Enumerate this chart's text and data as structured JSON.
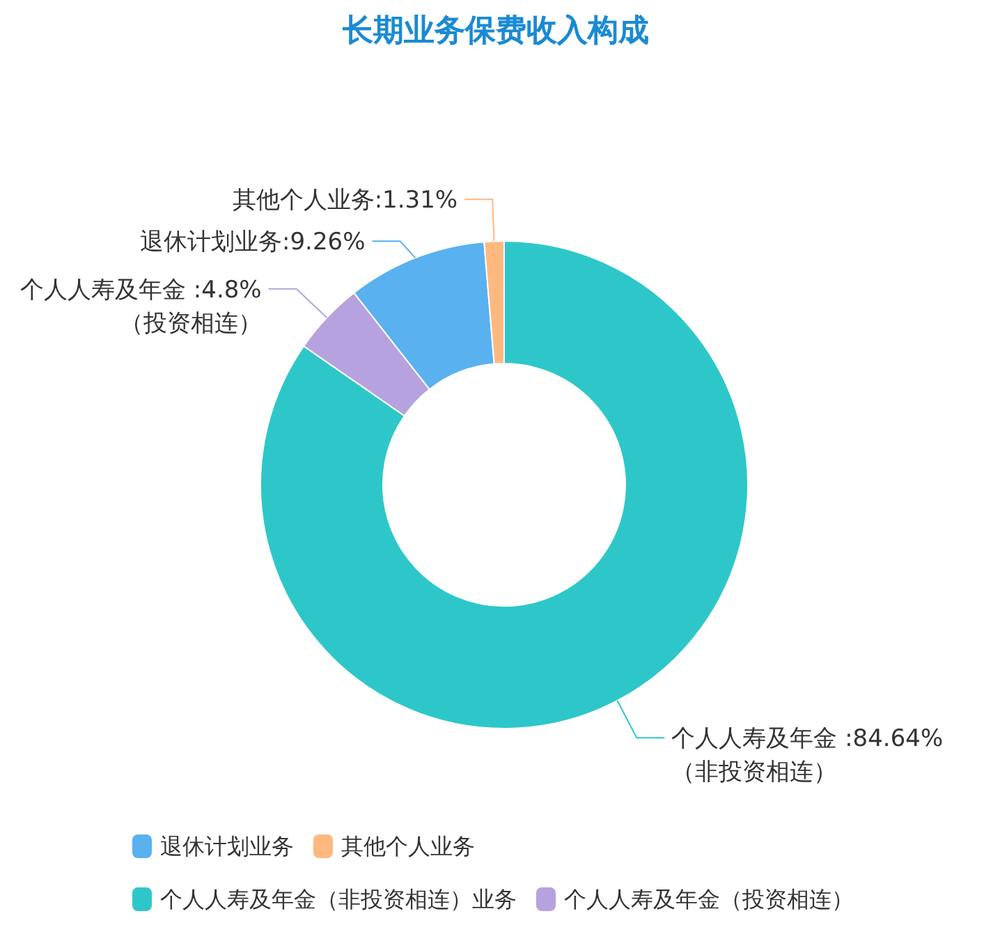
{
  "chart_data": {
    "type": "donut",
    "title": "长期业务保费收入构成",
    "categories": [
      "个人人寿及年金（非投资相连）业务",
      "个人人寿及年金（投资相连）",
      "退休计划业务",
      "其他个人业务"
    ],
    "values": [
      84.64,
      4.8,
      9.26,
      1.31
    ],
    "colors": [
      "#2ec7c9",
      "#b6a2de",
      "#5ab1ef",
      "#ffb980"
    ],
    "value_labels": [
      "个人人寿及年金 :84.64%\n（非投资相连）",
      "个人人寿及年金 :4.8%\n（投资相连）",
      "退休计划业务:9.26%",
      "其他个人业务:1.31%"
    ],
    "legend": "bottom"
  }
}
